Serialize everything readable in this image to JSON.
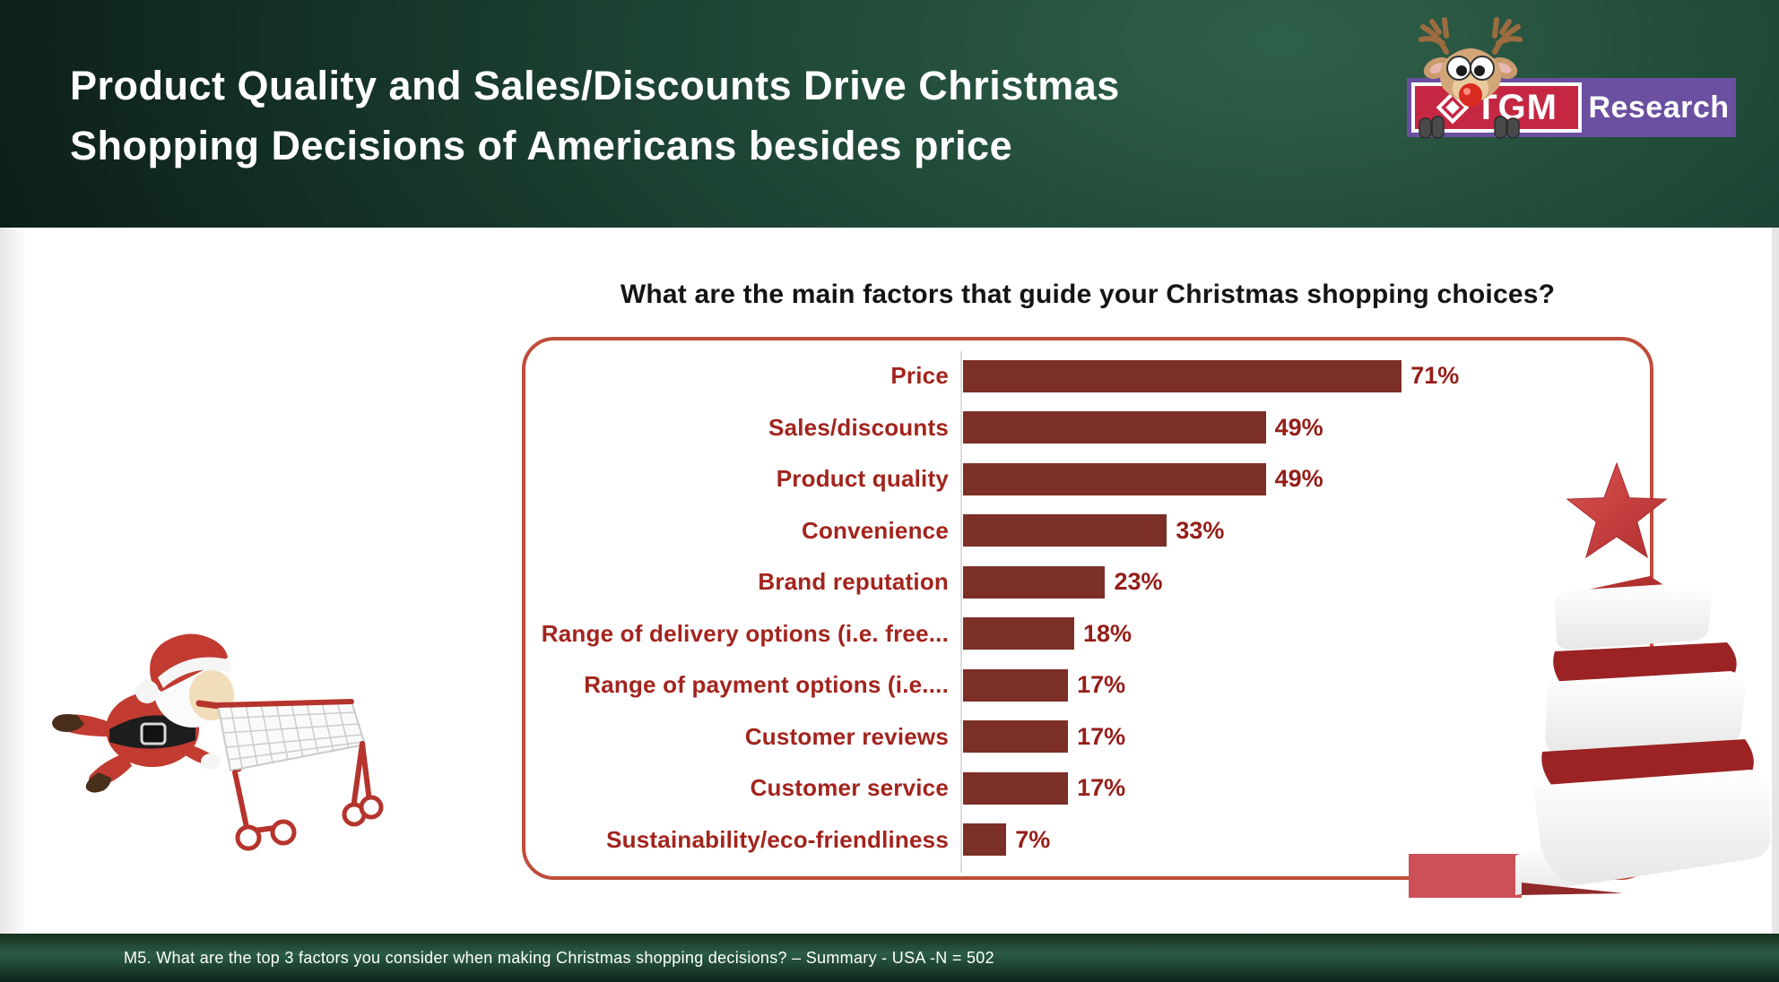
{
  "header": {
    "title_line1": "Product Quality and Sales/Discounts Drive Christmas",
    "title_line2": "Shopping Decisions of Americans besides price",
    "logo": {
      "brand_primary": "TGM",
      "brand_secondary": "Research"
    }
  },
  "chart_data": {
    "type": "bar",
    "orientation": "horizontal",
    "title": "What are the main factors that guide your Christmas shopping choices?",
    "categories": [
      "Price",
      "Sales/discounts",
      "Product quality",
      "Convenience",
      "Brand reputation",
      "Range of delivery options (i.e. free...",
      "Range of payment options (i.e....",
      "Customer reviews",
      "Customer service",
      "Sustainability/eco-friendliness"
    ],
    "values": [
      71,
      49,
      49,
      33,
      23,
      18,
      17,
      17,
      17,
      7
    ],
    "value_suffix": "%",
    "xlim": [
      0,
      100
    ],
    "grid": false,
    "legend": "none",
    "bar_color": "#7c2f26",
    "category_label_color": "#a3241d",
    "value_label_color": "#951e19"
  },
  "icons": {
    "reindeer": "reindeer-icon",
    "diamond": "diamond-logo-icon",
    "santa": "santa-shopping-cart-illustration",
    "tree": "ribbon-christmas-tree-illustration"
  },
  "colors": {
    "header_green_dark": "#0c1e16",
    "header_green_light": "#2f6049",
    "chart_box_border": "#bf4d3a",
    "bar": "#7c2f26",
    "category_label": "#a3241d",
    "value_label": "#951e19",
    "logo_red": "#c52743",
    "logo_purple": "#6b4fa1",
    "tree_red": "#9b2323",
    "accent_rect": "#cd4f58"
  },
  "footer": {
    "note": "M5. What are the top 3 factors you consider when making Christmas shopping decisions? – Summary - USA -N = 502"
  }
}
